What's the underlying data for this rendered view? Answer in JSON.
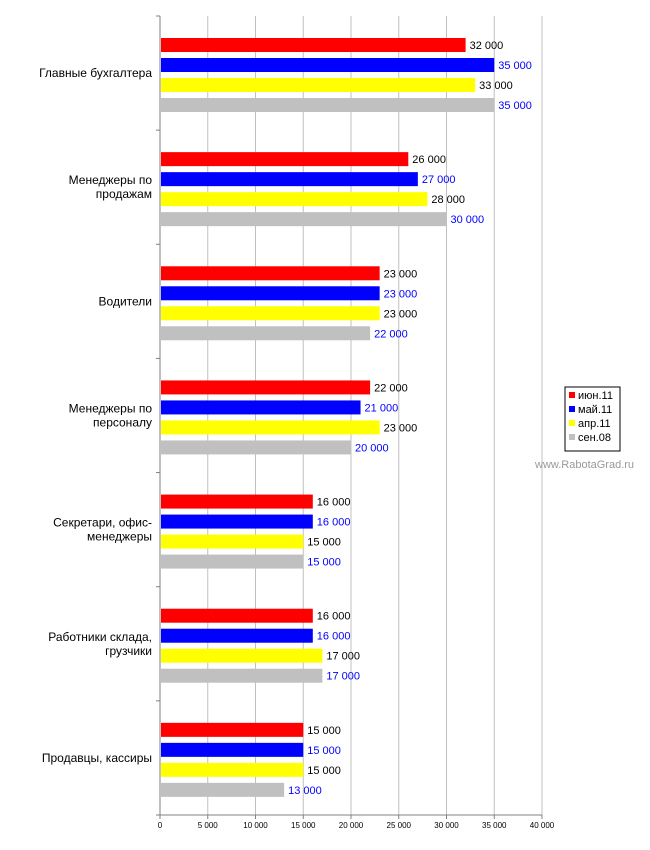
{
  "chart_data": {
    "type": "bar",
    "orientation": "horizontal",
    "categories": [
      "Главные бухгалтера",
      "Менеджеры по продажам",
      "Водители",
      "Менеджеры по персоналу",
      "Секретари, офис-менеджеры",
      "Работники склада, грузчики",
      "Продавцы, кассиры"
    ],
    "category_lines": [
      [
        "Главные бухгалтера"
      ],
      [
        "Менеджеры по",
        "продажам"
      ],
      [
        "Водители"
      ],
      [
        "Менеджеры по",
        "персоналу"
      ],
      [
        "Секретари, офис-",
        "менеджеры"
      ],
      [
        "Работники склада,",
        "грузчики"
      ],
      [
        "Продавцы, кассиры"
      ]
    ],
    "series": [
      {
        "name": "июн.11",
        "color": "#ff0000",
        "label_color": "#000000",
        "values": [
          32000,
          26000,
          23000,
          22000,
          16000,
          16000,
          15000
        ],
        "labels": [
          "32 000",
          "26 000",
          "23 000",
          "22 000",
          "16 000",
          "16 000",
          "15 000"
        ]
      },
      {
        "name": "май.11",
        "color": "#0000ff",
        "label_color": "#0000ff",
        "values": [
          35000,
          27000,
          23000,
          21000,
          16000,
          16000,
          15000
        ],
        "labels": [
          "35 000",
          "27 000",
          "23 000",
          "21 000",
          "16 000",
          "16 000",
          "15 000"
        ]
      },
      {
        "name": "апр.11",
        "color": "#ffff00",
        "label_color": "#000000",
        "values": [
          33000,
          28000,
          23000,
          23000,
          15000,
          17000,
          15000
        ],
        "labels": [
          "33 000",
          "28 000",
          "23 000",
          "23 000",
          "15 000",
          "17 000",
          "15 000"
        ]
      },
      {
        "name": "сен.08",
        "color": "#c0c0c0",
        "label_color": "#0000ff",
        "values": [
          35000,
          30000,
          22000,
          20000,
          15000,
          17000,
          13000
        ],
        "labels": [
          "35 000",
          "30 000",
          "22 000",
          "20 000",
          "15 000",
          "17 000",
          "13 000"
        ]
      }
    ],
    "xlim": [
      0,
      40000
    ],
    "x_ticks": [
      0,
      5000,
      10000,
      15000,
      20000,
      25000,
      30000,
      35000,
      40000
    ],
    "x_tick_labels": [
      "0",
      "5 000",
      "10 000",
      "15 000",
      "20 000",
      "25 000",
      "30 000",
      "35 000",
      "40 000"
    ],
    "grid": true,
    "legend_position": "right",
    "gridline_color": "#c0c0c0"
  },
  "watermark": "www.RabotaGrad.ru"
}
